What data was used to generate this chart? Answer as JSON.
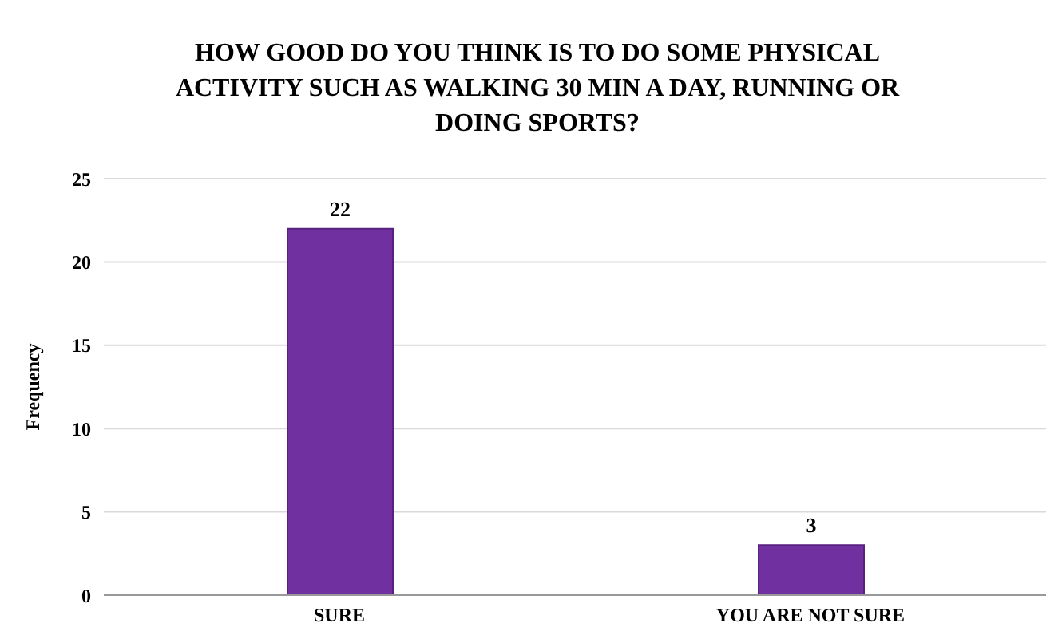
{
  "chart_data": {
    "type": "bar",
    "title": "HOW GOOD DO YOU THINK IS TO DO SOME PHYSICAL ACTIVITY SUCH AS WALKING 30 MIN A DAY, RUNNING OR DOING SPORTS?",
    "ylabel": "Frequency",
    "categories": [
      "SURE",
      "YOU ARE NOT SURE"
    ],
    "values": [
      22,
      3
    ],
    "color": "#7030a0",
    "ylim": [
      0,
      25
    ],
    "yticks": [
      0,
      5,
      10,
      15,
      20,
      25
    ],
    "grid": "y",
    "data_labels": true
  }
}
